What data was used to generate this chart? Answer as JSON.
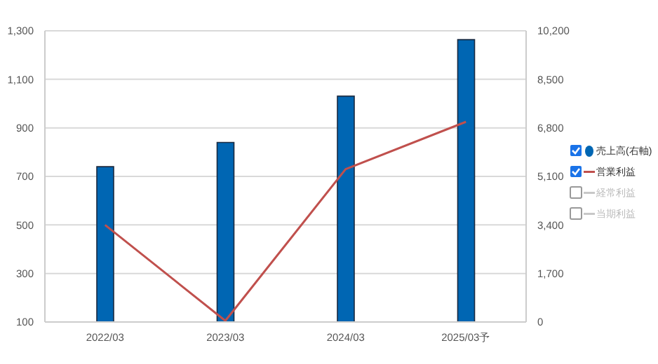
{
  "chart_data": {
    "type": "bar",
    "categories": [
      "2022/03",
      "2023/03",
      "2024/03",
      "2025/03予"
    ],
    "series": [
      {
        "name": "売上高(右軸)",
        "axis": "y2",
        "color": "#0066b3",
        "values": [
          5440,
          6290,
          7910,
          9890
        ]
      },
      {
        "name": "営業利益",
        "type": "line",
        "color": "#c0504d",
        "values": [
          500,
          105,
          730,
          925
        ]
      },
      {
        "name": "経常利益",
        "type": "line",
        "color": "#c8c8c8",
        "values": [
          null,
          null,
          null,
          null
        ]
      },
      {
        "name": "当期利益",
        "type": "line",
        "color": "#c8c8c8",
        "values": [
          null,
          null,
          null,
          null
        ]
      }
    ],
    "ylim": [
      100,
      1300
    ],
    "yticks": [
      100,
      300,
      500,
      700,
      900,
      {
        "value": 1100,
        "label": "1,100"
      },
      {
        "value": 1300,
        "label": "1,300"
      }
    ],
    "y2lim": [
      0,
      10200
    ],
    "y2ticks": [
      0,
      {
        "value": 1700,
        "label": "1,700"
      },
      {
        "value": 3400,
        "label": "3,400"
      },
      {
        "value": 5100,
        "label": "5,100"
      },
      {
        "value": 6800,
        "label": "6,800"
      },
      {
        "value": 8500,
        "label": "8,500"
      },
      {
        "value": 10200,
        "label": "10,200"
      }
    ],
    "grid": "y",
    "legend": "right",
    "marker": "none"
  }
}
